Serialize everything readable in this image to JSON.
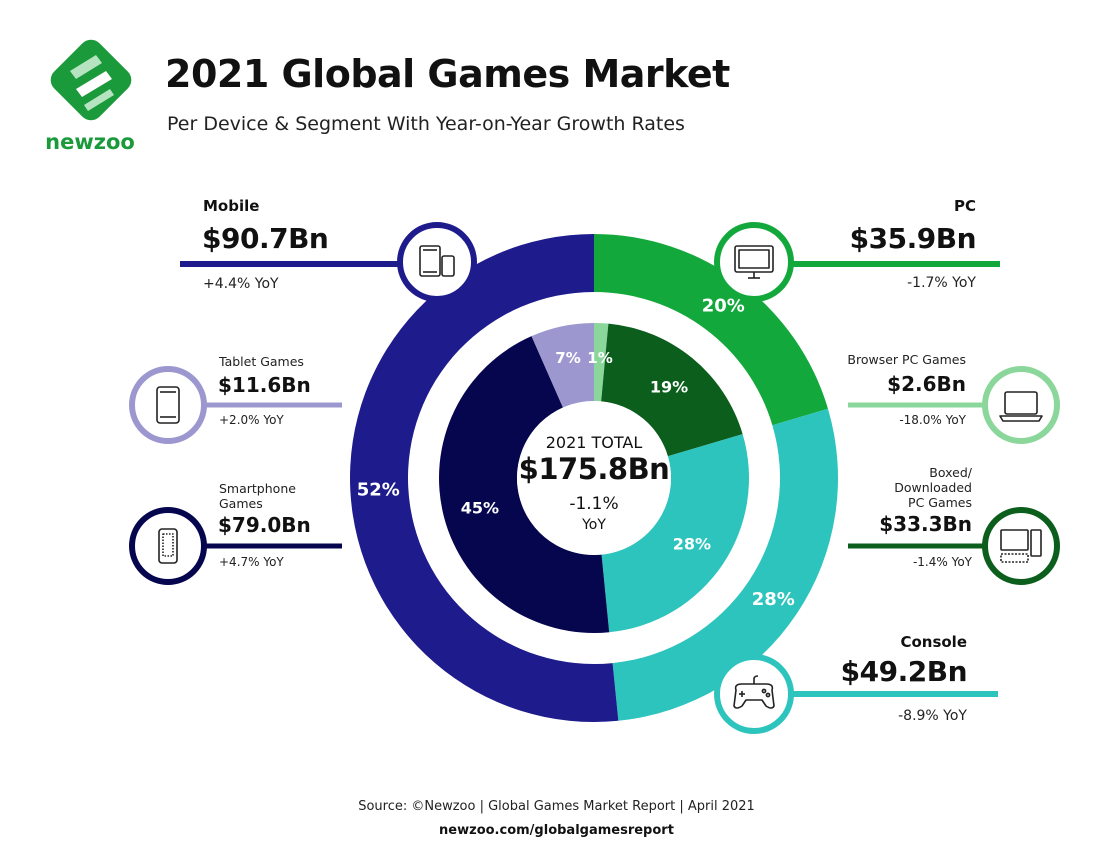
{
  "header": {
    "title": "2021 Global Games Market",
    "subtitle": "Per Device & Segment With Year-on-Year Growth Rates",
    "logo_text": "newzoo"
  },
  "colors": {
    "mobile": "#1e1b8c",
    "smartphone": "#06064f",
    "tablet": "#9c98cf",
    "pc": "#13a83c",
    "browser": "#8bd79b",
    "boxed": "#0b5e1c",
    "console": "#2ec4be"
  },
  "center": {
    "label": "2021 TOTAL",
    "value": "$175.8Bn",
    "growth": "-1.1%",
    "growth_unit": "YoY"
  },
  "segments": {
    "mobile": {
      "name": "Mobile",
      "value": "$90.7Bn",
      "yoy": "+4.4% YoY"
    },
    "tablet": {
      "name": "Tablet Games",
      "value": "$11.6Bn",
      "yoy": "+2.0% YoY"
    },
    "smartphone": {
      "name_line1": "Smartphone",
      "name_line2": "Games",
      "value": "$79.0Bn",
      "yoy": "+4.7% YoY"
    },
    "pc": {
      "name": "PC",
      "value": "$35.9Bn",
      "yoy": "-1.7% YoY"
    },
    "browser": {
      "name": "Browser PC Games",
      "value": "$2.6Bn",
      "yoy": "-18.0% YoY"
    },
    "boxed": {
      "name_line1": "Boxed/",
      "name_line2": "Downloaded",
      "name_line3": "PC Games",
      "value": "$33.3Bn",
      "yoy": "-1.4% YoY"
    },
    "console": {
      "name": "Console",
      "value": "$49.2Bn",
      "yoy": "-8.9% YoY"
    }
  },
  "chart_data": {
    "type": "pie",
    "title": "2021 Global Games Market",
    "unit": "$Bn",
    "total": 175.8,
    "outer_ring": [
      {
        "key": "pc",
        "label": "PC",
        "value": 35.9,
        "percent_label": "20%"
      },
      {
        "key": "console",
        "label": "Console",
        "value": 49.2,
        "percent_label": "28%"
      },
      {
        "key": "mobile",
        "label": "Mobile",
        "value": 90.7,
        "percent_label": "52%"
      }
    ],
    "inner_ring": [
      {
        "key": "browser",
        "label": "Browser PC Games",
        "value": 2.6,
        "percent_label": "1%"
      },
      {
        "key": "boxed",
        "label": "Boxed/Downloaded PC Games",
        "value": 33.3,
        "percent_label": "19%"
      },
      {
        "key": "console",
        "label": "Console",
        "value": 49.2,
        "percent_label": "28%"
      },
      {
        "key": "smartphone",
        "label": "Smartphone Games",
        "value": 79.0,
        "percent_label": "45%"
      },
      {
        "key": "tablet",
        "label": "Tablet Games",
        "value": 11.6,
        "percent_label": "7%"
      }
    ]
  },
  "footer": {
    "source": "Source: ©Newzoo | Global Games Market Report | April 2021",
    "url": "newzoo.com/globalgamesreport"
  }
}
